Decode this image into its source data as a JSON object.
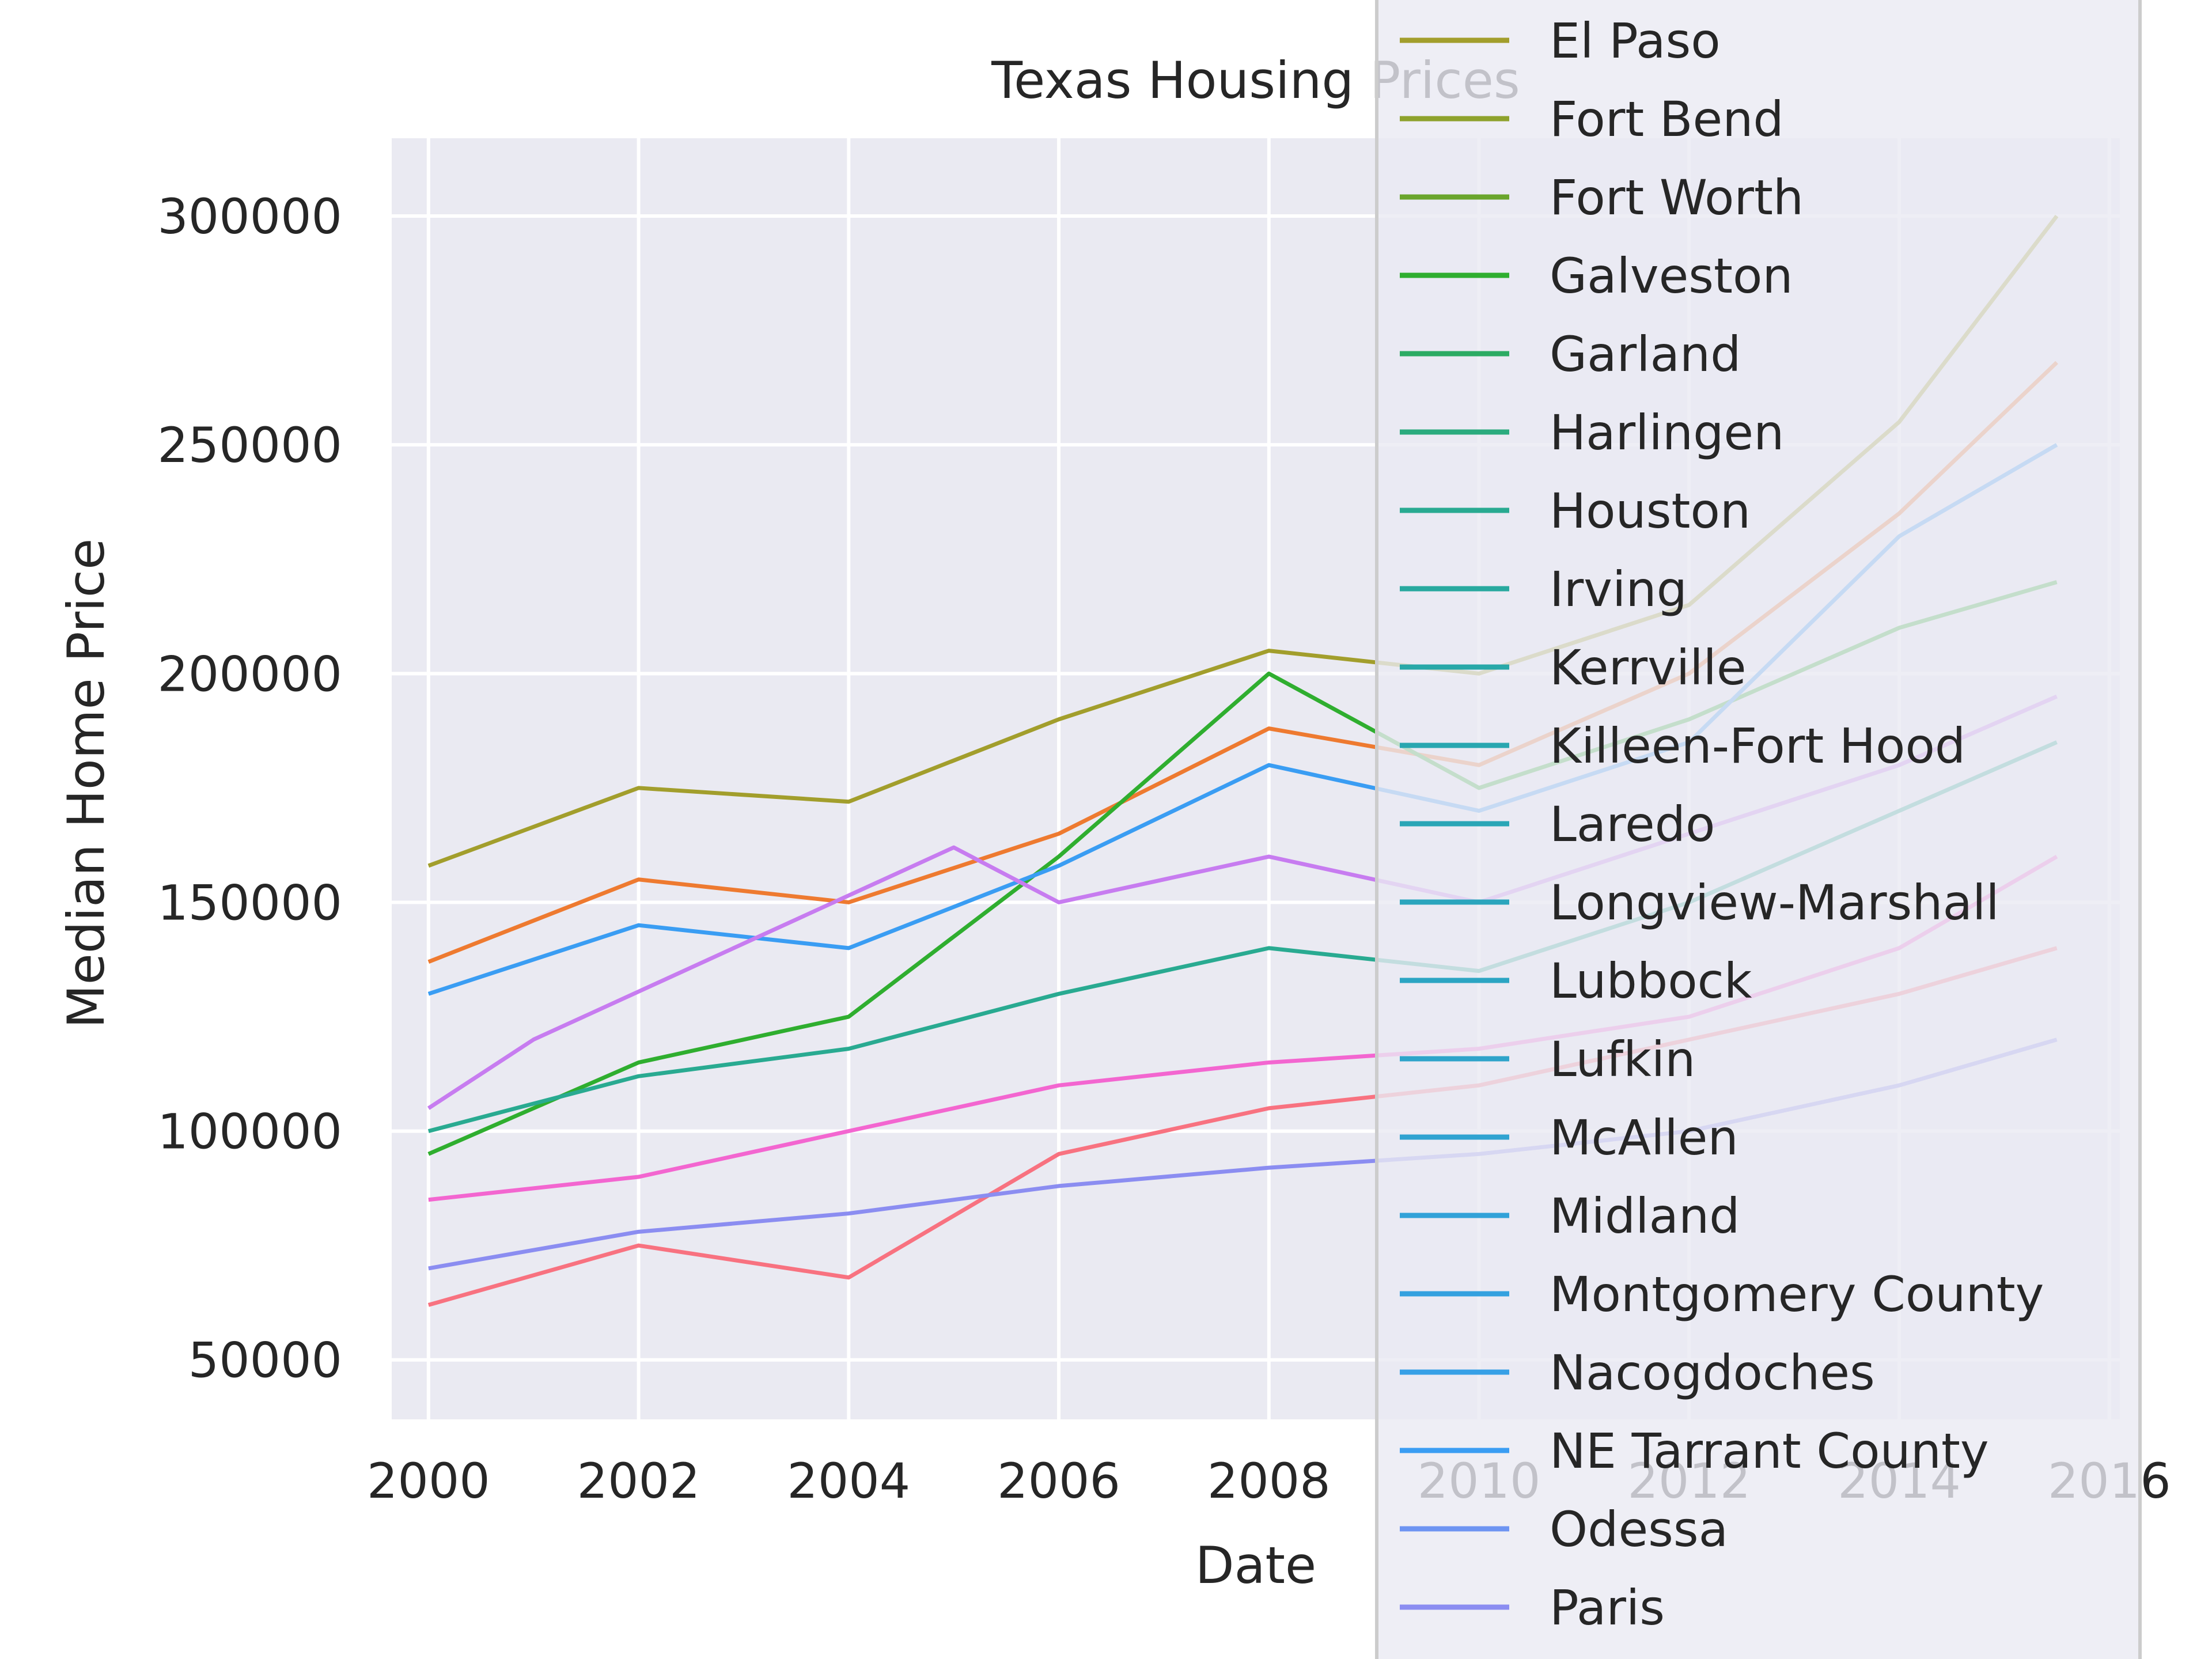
{
  "chart_data": {
    "type": "line",
    "title": "Texas Housing Prices",
    "xlabel": "Date",
    "ylabel": "Median Home Price",
    "xlim": [
      1999.65,
      2016.1
    ],
    "ylim": [
      37000,
      317000
    ],
    "x_ticks": [
      2000,
      2002,
      2004,
      2006,
      2008,
      2010,
      2012,
      2014,
      2016
    ],
    "y_ticks": [
      50000,
      100000,
      150000,
      200000,
      250000,
      300000
    ],
    "grid": true,
    "legend_placement": "right, overlapping the plot",
    "legend": [
      {
        "name": "El Paso",
        "color": "#a29e2c"
      },
      {
        "name": "Fort Bend",
        "color": "#8ea22c"
      },
      {
        "name": "Fort Worth",
        "color": "#6aa52c"
      },
      {
        "name": "Galveston",
        "color": "#2fae2f"
      },
      {
        "name": "Garland",
        "color": "#2cab63"
      },
      {
        "name": "Harlingen",
        "color": "#2bab7e"
      },
      {
        "name": "Houston",
        "color": "#29aa91"
      },
      {
        "name": "Irving",
        "color": "#28a99f"
      },
      {
        "name": "Kerrville",
        "color": "#28a8a8"
      },
      {
        "name": "Killeen-Fort Hood",
        "color": "#29a7b0"
      },
      {
        "name": "Laredo",
        "color": "#2aa6b6"
      },
      {
        "name": "Longview-Marshall",
        "color": "#2ba5bd"
      },
      {
        "name": "Lubbock",
        "color": "#2ca5c3"
      },
      {
        "name": "Lufkin",
        "color": "#2ea4ca"
      },
      {
        "name": "McAllen",
        "color": "#30a3d1"
      },
      {
        "name": "Midland",
        "color": "#32a2d8"
      },
      {
        "name": "Montgomery County",
        "color": "#34a1df"
      },
      {
        "name": "Nacogdoches",
        "color": "#37a0e6"
      },
      {
        "name": "NE Tarrant County",
        "color": "#3a9df3"
      },
      {
        "name": "Odessa",
        "color": "#6d94f2"
      },
      {
        "name": "Paris",
        "color": "#8b8df1"
      }
    ],
    "series_preview": [
      {
        "color": "#a29e2c",
        "x": [
          2000,
          2002,
          2004,
          2006,
          2008,
          2010,
          2012,
          2014,
          2015.5
        ],
        "values": [
          158000,
          175000,
          172000,
          190000,
          205000,
          200000,
          215000,
          255000,
          300000
        ]
      },
      {
        "color": "#ee7a30",
        "x": [
          2000,
          2002,
          2004,
          2006,
          2008,
          2010,
          2012,
          2014,
          2015.5
        ],
        "values": [
          137000,
          155000,
          150000,
          165000,
          188000,
          180000,
          200000,
          235000,
          268000
        ]
      },
      {
        "color": "#2fae2f",
        "x": [
          2000,
          2002,
          2004,
          2006,
          2008,
          2010,
          2012,
          2014,
          2015.5
        ],
        "values": [
          95000,
          115000,
          125000,
          160000,
          200000,
          175000,
          190000,
          210000,
          220000
        ]
      },
      {
        "color": "#3a9df3",
        "x": [
          2000,
          2002,
          2004,
          2006,
          2008,
          2010,
          2012,
          2014,
          2015.5
        ],
        "values": [
          130000,
          145000,
          140000,
          158000,
          180000,
          170000,
          185000,
          230000,
          250000
        ]
      },
      {
        "color": "#29aa91",
        "x": [
          2000,
          2002,
          2004,
          2006,
          2008,
          2010,
          2012,
          2014,
          2015.5
        ],
        "values": [
          100000,
          112000,
          118000,
          130000,
          140000,
          135000,
          150000,
          170000,
          185000
        ]
      },
      {
        "color": "#c77cf0",
        "x": [
          2000,
          2001,
          2005,
          2006,
          2008,
          2010,
          2012,
          2014,
          2015.5
        ],
        "values": [
          105000,
          120000,
          162000,
          150000,
          160000,
          150000,
          165000,
          180000,
          195000
        ]
      },
      {
        "color": "#f366d0",
        "x": [
          2000,
          2002,
          2004,
          2006,
          2008,
          2010,
          2012,
          2014,
          2015.5
        ],
        "values": [
          85000,
          90000,
          100000,
          110000,
          115000,
          118000,
          125000,
          140000,
          160000
        ]
      },
      {
        "color": "#f87280",
        "x": [
          2000,
          2002,
          2004,
          2006,
          2008,
          2010,
          2012,
          2014,
          2015.5
        ],
        "values": [
          62000,
          75000,
          68000,
          95000,
          105000,
          110000,
          120000,
          130000,
          140000
        ]
      },
      {
        "color": "#8b8df1",
        "x": [
          2000,
          2002,
          2004,
          2006,
          2008,
          2010,
          2012,
          2014,
          2015.5
        ],
        "values": [
          70000,
          78000,
          82000,
          88000,
          92000,
          95000,
          100000,
          110000,
          120000
        ]
      }
    ]
  }
}
